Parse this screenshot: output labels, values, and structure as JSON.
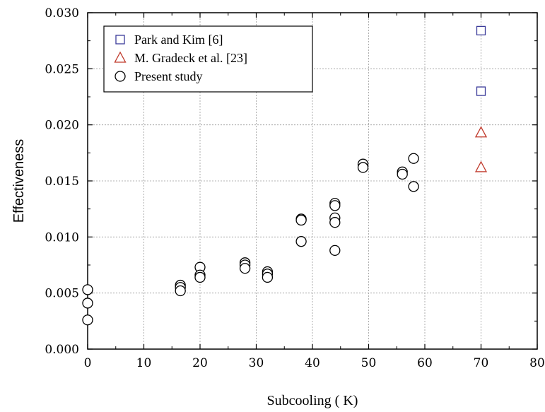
{
  "chart_data": {
    "type": "scatter",
    "title": "",
    "xlabel": "Subcooling ( K)",
    "ylabel": "Effectiveness",
    "xlim": [
      0,
      80
    ],
    "ylim": [
      0,
      0.03
    ],
    "x_ticks": [
      "0",
      "10",
      "20",
      "30",
      "40",
      "50",
      "60",
      "70",
      "80"
    ],
    "y_ticks": [
      "0.000",
      "0.005",
      "0.010",
      "0.015",
      "0.020",
      "0.025",
      "0.030"
    ],
    "grid": true,
    "legend_position": "top-left",
    "series": [
      {
        "name": "Park and Kim [6]",
        "marker": "square",
        "color": "#3b3b9a",
        "points": [
          [
            70,
            0.0284
          ],
          [
            70,
            0.023
          ]
        ]
      },
      {
        "name": "M. Gradeck et al. [23]",
        "marker": "triangle",
        "color": "#c0392b",
        "points": [
          [
            70,
            0.0193
          ],
          [
            70,
            0.0162
          ]
        ]
      },
      {
        "name": "Present study",
        "marker": "circle",
        "color": "#000000",
        "points": [
          [
            0,
            0.0053
          ],
          [
            0,
            0.0041
          ],
          [
            0,
            0.0026
          ],
          [
            16.5,
            0.0057
          ],
          [
            16.5,
            0.0055
          ],
          [
            16.5,
            0.0052
          ],
          [
            20,
            0.0073
          ],
          [
            20,
            0.0066
          ],
          [
            20,
            0.0064
          ],
          [
            28,
            0.0077
          ],
          [
            28,
            0.0075
          ],
          [
            28,
            0.0072
          ],
          [
            32,
            0.0069
          ],
          [
            32,
            0.0067
          ],
          [
            32,
            0.0064
          ],
          [
            38,
            0.0116
          ],
          [
            38,
            0.0115
          ],
          [
            38,
            0.0096
          ],
          [
            44,
            0.013
          ],
          [
            44,
            0.0128
          ],
          [
            44,
            0.0117
          ],
          [
            44,
            0.0113
          ],
          [
            44,
            0.0088
          ],
          [
            49,
            0.0165
          ],
          [
            49,
            0.0162
          ],
          [
            56,
            0.0158
          ],
          [
            56,
            0.0156
          ],
          [
            58,
            0.017
          ],
          [
            58,
            0.0145
          ]
        ]
      }
    ]
  }
}
